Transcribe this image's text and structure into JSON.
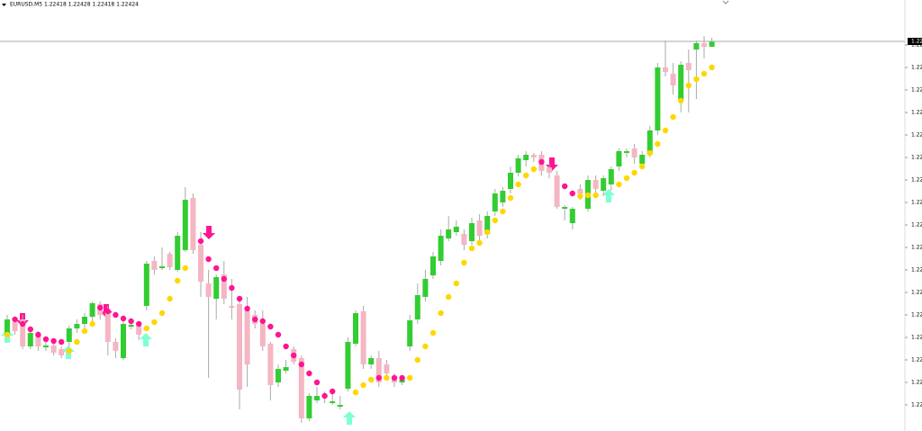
{
  "chart_data": {
    "type": "candlestick",
    "title": "EURUSD,M5  1.22418 1.22428 1.22418 1.22424",
    "open": [
      1.221,
      1.22112,
      1.22115,
      1.22085,
      1.22098,
      1.22084,
      1.22086,
      1.22082,
      1.2209,
      1.22105,
      1.2211,
      1.22118,
      1.22132,
      1.22125,
      1.2209,
      1.22072,
      1.22107,
      1.2211,
      1.2213,
      1.2218,
      1.22172,
      1.22188,
      1.2217,
      1.22192,
      1.2225,
      1.22198,
      1.22155,
      1.22138,
      1.22165,
      1.2213,
      1.22132,
      1.22125,
      1.2212,
      1.2211,
      1.22088,
      1.22045,
      1.22058,
      1.22082,
      1.22072,
      1.22005,
      1.22025,
      1.2203,
      1.22022,
      1.22018,
      1.22038,
      1.22088,
      1.22124,
      1.22065,
      1.22072,
      1.22065,
      1.2205,
      1.22045,
      1.22085,
      1.22115,
      1.2214,
      1.22164,
      1.2218,
      1.22205,
      1.22212,
      1.2221,
      1.22202,
      1.22225,
      1.2221,
      1.22235,
      1.22245,
      1.2226,
      1.22278,
      1.22292,
      1.22298,
      1.22298,
      1.22284,
      1.22275,
      1.22238,
      1.22222,
      1.2226,
      1.22238,
      1.2227,
      1.22258,
      1.22265,
      1.22285,
      1.223,
      1.22305,
      1.22288,
      1.22298,
      1.22325,
      1.22395,
      1.22388,
      1.22358,
      1.224,
      1.22415,
      1.22422,
      1.22418
    ],
    "high": [
      1.2212,
      1.22118,
      1.2212,
      1.22102,
      1.22102,
      1.2209,
      1.2209,
      1.22085,
      1.22108,
      1.22115,
      1.22122,
      1.22135,
      1.22135,
      1.2213,
      1.22094,
      1.22115,
      1.22112,
      1.22113,
      1.2218,
      1.22185,
      1.22195,
      1.2219,
      1.22212,
      1.22262,
      1.22255,
      1.22212,
      1.2217,
      1.22165,
      1.2218,
      1.2216,
      1.2214,
      1.2214,
      1.22125,
      1.22125,
      1.2209,
      1.22065,
      1.2207,
      1.22085,
      1.22075,
      1.22033,
      1.2204,
      1.22035,
      1.22035,
      1.2203,
      1.22095,
      1.22125,
      1.2213,
      1.22075,
      1.2208,
      1.2207,
      1.22055,
      1.22052,
      1.2212,
      1.22155,
      1.2217,
      1.2219,
      1.22215,
      1.2223,
      1.22225,
      1.22215,
      1.22228,
      1.22232,
      1.22235,
      1.2226,
      1.22262,
      1.22285,
      1.22298,
      1.22302,
      1.223,
      1.22302,
      1.22288,
      1.2228,
      1.22242,
      1.2224,
      1.22265,
      1.22275,
      1.22275,
      1.22275,
      1.22285,
      1.22305,
      1.22305,
      1.2231,
      1.22302,
      1.2233,
      1.224,
      1.22425,
      1.224,
      1.22402,
      1.22415,
      1.22425,
      1.2243,
      1.22428
    ],
    "low": [
      1.22095,
      1.22098,
      1.22082,
      1.22082,
      1.2208,
      1.2208,
      1.22075,
      1.22072,
      1.22085,
      1.221,
      1.22105,
      1.2211,
      1.22115,
      1.22075,
      1.22072,
      1.2207,
      1.22104,
      1.22092,
      1.22125,
      1.22165,
      1.2217,
      1.2217,
      1.22168,
      1.2219,
      1.22188,
      1.2214,
      1.2205,
      1.22115,
      1.22132,
      1.22115,
      1.22015,
      1.2204,
      1.22105,
      1.2208,
      1.22025,
      1.2204,
      1.22055,
      1.22065,
      1.22,
      1.22002,
      1.22022,
      1.22022,
      1.2202,
      1.22015,
      1.22035,
      1.22085,
      1.2206,
      1.2206,
      1.2204,
      1.2205,
      1.2204,
      1.22042,
      1.2208,
      1.2211,
      1.22135,
      1.2216,
      1.22175,
      1.22202,
      1.22208,
      1.22192,
      1.22198,
      1.22202,
      1.22205,
      1.2223,
      1.2224,
      1.22255,
      1.22274,
      1.22285,
      1.2229,
      1.22275,
      1.22272,
      1.22238,
      1.22225,
      1.22215,
      1.22248,
      1.22235,
      1.22255,
      1.22252,
      1.22258,
      1.2228,
      1.22295,
      1.22288,
      1.22285,
      1.22295,
      1.2232,
      1.22385,
      1.22365,
      1.22345,
      1.22345,
      1.2236,
      1.22405,
      1.22418
    ],
    "close": [
      1.22115,
      1.22102,
      1.22085,
      1.221,
      1.22085,
      1.22086,
      1.22078,
      1.22075,
      1.22105,
      1.2211,
      1.22118,
      1.22133,
      1.2212,
      1.2209,
      1.2208,
      1.2211,
      1.22109,
      1.22098,
      1.22177,
      1.2217,
      1.22174,
      1.22173,
      1.22208,
      1.22248,
      1.22192,
      1.22157,
      1.2214,
      1.22162,
      1.22138,
      1.22128,
      1.22037,
      1.22065,
      1.2211,
      1.22085,
      1.22042,
      1.2206,
      1.22062,
      1.22068,
      1.22005,
      1.2203,
      1.2203,
      1.22028,
      1.22024,
      1.2202,
      1.2209,
      1.22122,
      1.22065,
      1.22072,
      1.22045,
      1.22055,
      1.22045,
      1.22048,
      1.22114,
      1.22142,
      1.2216,
      1.22185,
      1.22208,
      1.22215,
      1.22218,
      1.22198,
      1.22222,
      1.22208,
      1.2223,
      1.22255,
      1.22258,
      1.22278,
      1.22294,
      1.22298,
      1.22295,
      1.2228,
      1.22278,
      1.2224,
      1.2224,
      1.22238,
      1.22255,
      1.2227,
      1.2226,
      1.22272,
      1.22282,
      1.22302,
      1.22302,
      1.22295,
      1.22298,
      1.22325,
      1.22395,
      1.2239,
      1.22375,
      1.22398,
      1.22392,
      1.22422,
      1.22418,
      1.22424
    ],
    "sar": {
      "values": [
        1.22098,
        1.22115,
        1.2211,
        1.22104,
        1.22098,
        1.22093,
        1.22091,
        1.2209,
        1.2208,
        1.2209,
        1.22102,
        1.2211,
        1.22128,
        1.22124,
        1.2212,
        1.22116,
        1.22113,
        1.2211,
        1.22105,
        1.22112,
        1.22122,
        1.22138,
        1.22158,
        1.22172,
        null,
        1.22202,
        1.22182,
        1.22172,
        1.2216,
        1.2215,
        1.22138,
        1.22127,
        1.22115,
        1.22113,
        1.22107,
        1.22098,
        1.22085,
        1.22075,
        1.22065,
        1.22055,
        1.22045,
        1.2203,
        1.22035,
        null,
        null,
        1.22034,
        1.22042,
        1.22048,
        1.2205,
        1.2205,
        1.2205,
        1.2205,
        1.2205,
        1.2207,
        1.22085,
        1.221,
        1.22122,
        1.2214,
        1.22155,
        1.22178,
        1.22194,
        1.222,
        1.22212,
        1.22225,
        1.22235,
        1.2225,
        1.22265,
        1.22275,
        1.22282,
        1.2229,
        null,
        null,
        1.22263,
        1.22255,
        1.22252,
        1.22253,
        1.22253,
        null,
        null,
        1.22265,
        1.22272,
        1.22278,
        1.22285,
        1.223,
        1.2231,
        1.22325,
        1.2234,
        1.22358,
        1.22375,
        1.22382,
        1.22388,
        1.22395
      ],
      "above_color": "#ff1493",
      "below_color": "#ffd700"
    },
    "up_color": "#32cd32",
    "down_color": "#f4b6c2",
    "current_price": {
      "value": 1.22424,
      "label": "1.22"
    },
    "ylim": [
      1.21991,
      1.2247
    ],
    "yticks": [
      {
        "value": 1.2242,
        "label": "1.22"
      },
      {
        "value": 1.22395,
        "label": "1.22"
      },
      {
        "value": 1.2237,
        "label": "1.22"
      },
      {
        "value": 1.22345,
        "label": "1.22"
      },
      {
        "value": 1.2232,
        "label": "1.22"
      },
      {
        "value": 1.22295,
        "label": "1.22"
      },
      {
        "value": 1.2227,
        "label": "1.22"
      },
      {
        "value": 1.22245,
        "label": "1.22"
      },
      {
        "value": 1.2222,
        "label": "1.22"
      },
      {
        "value": 1.22195,
        "label": "1.22"
      },
      {
        "value": 1.2217,
        "label": "1.22"
      },
      {
        "value": 1.22145,
        "label": "1.22"
      },
      {
        "value": 1.2212,
        "label": "1.22"
      },
      {
        "value": 1.22095,
        "label": "1.22"
      },
      {
        "value": 1.2207,
        "label": "1.22"
      },
      {
        "value": 1.22045,
        "label": "1.22"
      },
      {
        "value": 1.2202,
        "label": "1.22"
      }
    ],
    "grid": false
  }
}
